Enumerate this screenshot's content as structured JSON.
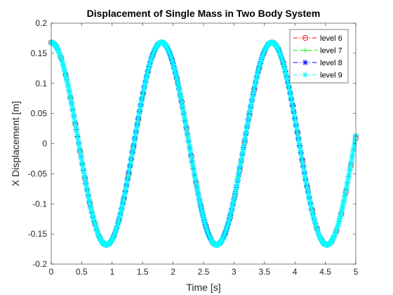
{
  "chart_data": {
    "type": "line",
    "title": "Displacement of Single Mass in Two Body System",
    "xlabel": "Time [s]",
    "ylabel": "X Displacement [m]",
    "xlim": [
      0,
      5
    ],
    "ylim": [
      -0.2,
      0.2
    ],
    "xticks": [
      0,
      0.5,
      1,
      1.5,
      2,
      2.5,
      3,
      3.5,
      4,
      4.5,
      5
    ],
    "xtick_labels": [
      "0",
      "0.5",
      "1",
      "1.5",
      "2",
      "2.5",
      "3",
      "3.5",
      "4",
      "4.5",
      "5"
    ],
    "yticks": [
      -0.2,
      -0.15,
      -0.1,
      -0.05,
      0,
      0.05,
      0.1,
      0.15,
      0.2
    ],
    "ytick_labels": [
      "-0.2",
      "-0.15",
      "-0.1",
      "-0.05",
      "0",
      "0.05",
      "0.1",
      "0.15",
      "0.2"
    ],
    "grid": false,
    "legend_position": "top-right",
    "series": [
      {
        "name": "level 6",
        "color": "#ff0000",
        "line_style": "dash-dot",
        "marker": "circle",
        "amplitude": 0.168,
        "period": 1.8125,
        "x_start": 0,
        "x_end": 5,
        "point_count": 64
      },
      {
        "name": "level 7",
        "color": "#00ff00",
        "line_style": "dashed",
        "marker": "plus",
        "amplitude": 0.168,
        "period": 1.81,
        "x_start": 0,
        "x_end": 5,
        "point_count": 128
      },
      {
        "name": "level 8",
        "color": "#0000ff",
        "line_style": "dash-dot",
        "marker": "asterisk",
        "amplitude": 0.168,
        "period": 1.81,
        "x_start": 0,
        "x_end": 5,
        "point_count": 256
      },
      {
        "name": "level 9",
        "color": "#00ffff",
        "line_style": "dash-dot",
        "marker": "asterisk",
        "amplitude": 0.168,
        "period": 1.81,
        "x_start": 0,
        "x_end": 5,
        "point_count": 512
      }
    ]
  }
}
